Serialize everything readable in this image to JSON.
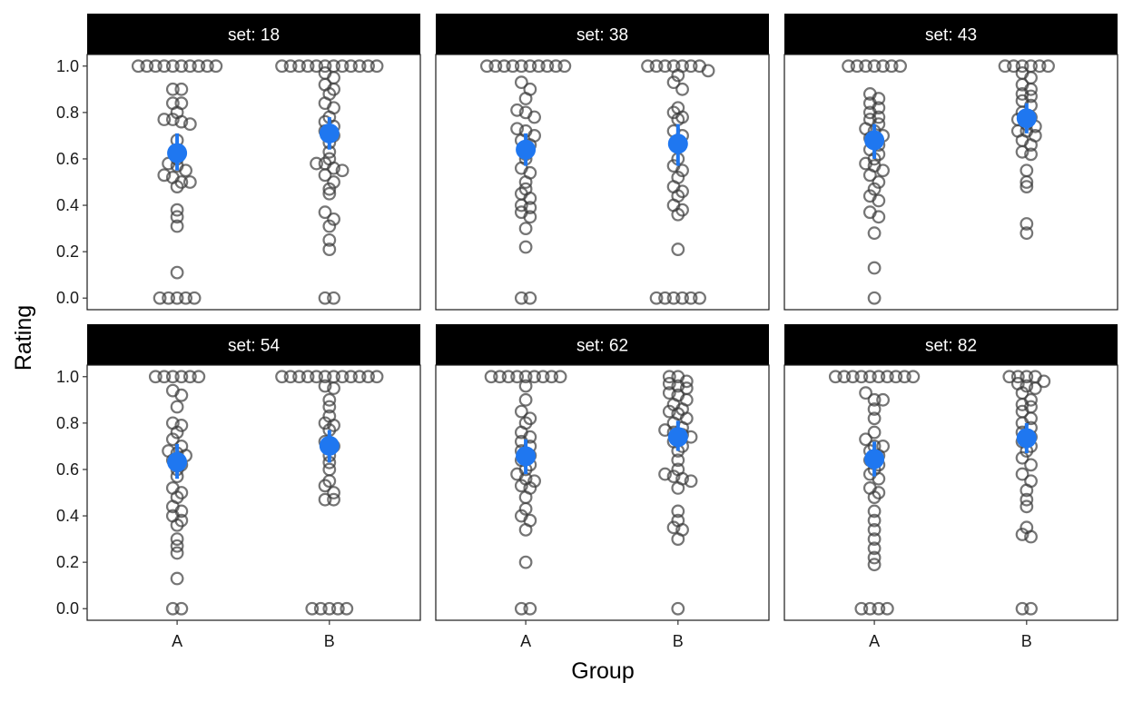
{
  "chart_data": {
    "type": "scatter",
    "xlabel": "Group",
    "ylabel": "Rating",
    "facet_label_prefix": "set: ",
    "groups": [
      "A",
      "B"
    ],
    "ylim": [
      -0.05,
      1.05
    ],
    "yticks": [
      "0.0",
      "0.2",
      "0.4",
      "0.6",
      "0.8",
      "1.0"
    ],
    "grid": false,
    "colors": {
      "points": "#3a3a3a",
      "mean": "#1f77f0",
      "strip": "#000000"
    },
    "panels": [
      {
        "set": "18",
        "A": {
          "mean": 0.625,
          "ci": [
            0.55,
            0.71
          ],
          "points": [
            1,
            1,
            1,
            1,
            1,
            1,
            1,
            1,
            1,
            1,
            0.9,
            0.9,
            0.84,
            0.84,
            0.8,
            0.77,
            0.77,
            0.76,
            0.75,
            0.68,
            0.62,
            0.6,
            0.58,
            0.57,
            0.55,
            0.53,
            0.52,
            0.5,
            0.5,
            0.48,
            0.38,
            0.35,
            0.31,
            0.11,
            0,
            0,
            0,
            0,
            0
          ]
        },
        "B": {
          "mean": 0.71,
          "ci": [
            0.64,
            0.78
          ],
          "points": [
            1,
            1,
            1,
            1,
            1,
            1,
            1,
            1,
            1,
            1,
            1,
            1,
            0.97,
            0.95,
            0.92,
            0.9,
            0.88,
            0.84,
            0.82,
            0.78,
            0.76,
            0.74,
            0.72,
            0.7,
            0.67,
            0.63,
            0.6,
            0.58,
            0.58,
            0.56,
            0.55,
            0.53,
            0.5,
            0.47,
            0.45,
            0.37,
            0.34,
            0.31,
            0.25,
            0.21,
            0,
            0
          ]
        }
      },
      {
        "set": "38",
        "A": {
          "mean": 0.64,
          "ci": [
            0.57,
            0.71
          ],
          "points": [
            1,
            1,
            1,
            1,
            1,
            1,
            1,
            1,
            1,
            1,
            0.93,
            0.9,
            0.86,
            0.81,
            0.8,
            0.78,
            0.73,
            0.72,
            0.7,
            0.68,
            0.66,
            0.62,
            0.6,
            0.56,
            0.54,
            0.5,
            0.47,
            0.45,
            0.43,
            0.4,
            0.39,
            0.37,
            0.35,
            0.3,
            0.22,
            0,
            0
          ]
        },
        "B": {
          "mean": 0.665,
          "ci": [
            0.57,
            0.75
          ],
          "points": [
            1,
            1,
            1,
            1,
            1,
            1,
            1,
            0.98,
            0.96,
            0.93,
            0.9,
            0.82,
            0.8,
            0.78,
            0.77,
            0.72,
            0.7,
            0.68,
            0.65,
            0.6,
            0.57,
            0.55,
            0.52,
            0.48,
            0.46,
            0.44,
            0.4,
            0.38,
            0.36,
            0.21,
            0,
            0,
            0,
            0,
            0,
            0
          ]
        }
      },
      {
        "set": "43",
        "A": {
          "mean": 0.68,
          "ci": [
            0.6,
            0.75
          ],
          "points": [
            1,
            1,
            1,
            1,
            1,
            1,
            1,
            0.88,
            0.86,
            0.84,
            0.82,
            0.8,
            0.78,
            0.77,
            0.75,
            0.73,
            0.72,
            0.7,
            0.69,
            0.66,
            0.64,
            0.62,
            0.6,
            0.58,
            0.57,
            0.55,
            0.53,
            0.5,
            0.47,
            0.44,
            0.42,
            0.37,
            0.35,
            0.28,
            0.13,
            0
          ]
        },
        "B": {
          "mean": 0.775,
          "ci": [
            0.71,
            0.84
          ],
          "points": [
            1,
            1,
            1,
            1,
            1,
            1,
            0.97,
            0.95,
            0.92,
            0.9,
            0.88,
            0.87,
            0.85,
            0.83,
            0.8,
            0.78,
            0.77,
            0.75,
            0.74,
            0.72,
            0.72,
            0.7,
            0.68,
            0.66,
            0.63,
            0.62,
            0.55,
            0.5,
            0.48,
            0.32,
            0.28
          ]
        }
      },
      {
        "set": "54",
        "A": {
          "mean": 0.632,
          "ci": [
            0.56,
            0.71
          ],
          "points": [
            1,
            1,
            1,
            1,
            1,
            1,
            0.94,
            0.92,
            0.87,
            0.8,
            0.79,
            0.76,
            0.73,
            0.7,
            0.68,
            0.67,
            0.66,
            0.64,
            0.62,
            0.6,
            0.57,
            0.52,
            0.5,
            0.48,
            0.44,
            0.42,
            0.4,
            0.38,
            0.36,
            0.3,
            0.27,
            0.24,
            0.13,
            0,
            0
          ]
        },
        "B": {
          "mean": 0.702,
          "ci": [
            0.63,
            0.77
          ],
          "points": [
            1,
            1,
            1,
            1,
            1,
            1,
            1,
            1,
            1,
            1,
            1,
            1,
            0.96,
            0.95,
            0.9,
            0.87,
            0.83,
            0.8,
            0.79,
            0.77,
            0.72,
            0.7,
            0.66,
            0.63,
            0.6,
            0.55,
            0.53,
            0.5,
            0.47,
            0.47,
            0,
            0,
            0,
            0,
            0
          ]
        }
      },
      {
        "set": "62",
        "A": {
          "mean": 0.657,
          "ci": [
            0.58,
            0.73
          ],
          "points": [
            1,
            1,
            1,
            1,
            1,
            1,
            1,
            1,
            1,
            0.96,
            0.9,
            0.85,
            0.82,
            0.8,
            0.76,
            0.74,
            0.72,
            0.7,
            0.68,
            0.66,
            0.64,
            0.62,
            0.6,
            0.58,
            0.56,
            0.55,
            0.53,
            0.52,
            0.48,
            0.43,
            0.4,
            0.38,
            0.34,
            0.2,
            0,
            0
          ]
        },
        "B": {
          "mean": 0.74,
          "ci": [
            0.68,
            0.81
          ],
          "points": [
            1,
            1,
            0.98,
            0.97,
            0.96,
            0.95,
            0.93,
            0.92,
            0.9,
            0.88,
            0.86,
            0.85,
            0.84,
            0.82,
            0.8,
            0.78,
            0.77,
            0.76,
            0.75,
            0.74,
            0.72,
            0.7,
            0.68,
            0.64,
            0.6,
            0.58,
            0.57,
            0.56,
            0.55,
            0.52,
            0.42,
            0.38,
            0.35,
            0.34,
            0.3,
            0
          ]
        }
      },
      {
        "set": "82",
        "A": {
          "mean": 0.645,
          "ci": [
            0.57,
            0.72
          ],
          "points": [
            1,
            1,
            1,
            1,
            1,
            1,
            1,
            1,
            1,
            1,
            0.93,
            0.9,
            0.9,
            0.86,
            0.82,
            0.76,
            0.73,
            0.7,
            0.7,
            0.68,
            0.66,
            0.64,
            0.62,
            0.6,
            0.58,
            0.56,
            0.52,
            0.5,
            0.48,
            0.42,
            0.38,
            0.34,
            0.3,
            0.26,
            0.22,
            0.19,
            0,
            0,
            0,
            0
          ]
        },
        "B": {
          "mean": 0.735,
          "ci": [
            0.67,
            0.8
          ],
          "points": [
            1,
            1,
            1,
            1,
            0.98,
            0.97,
            0.96,
            0.95,
            0.93,
            0.9,
            0.88,
            0.87,
            0.85,
            0.82,
            0.8,
            0.78,
            0.76,
            0.74,
            0.72,
            0.7,
            0.68,
            0.65,
            0.62,
            0.58,
            0.55,
            0.51,
            0.47,
            0.44,
            0.35,
            0.32,
            0.31,
            0,
            0
          ]
        }
      }
    ]
  }
}
